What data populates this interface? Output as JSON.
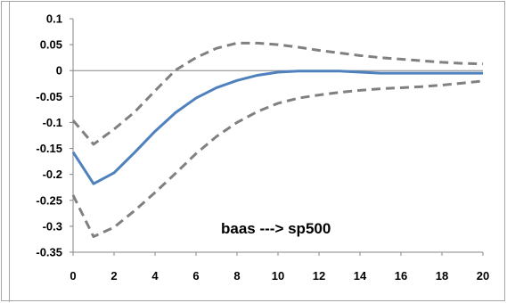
{
  "chart_data": {
    "type": "line",
    "title": "",
    "xlabel": "",
    "ylabel": "",
    "annotation": "baas ---> sp500",
    "x": [
      0,
      1,
      2,
      3,
      4,
      5,
      6,
      7,
      8,
      9,
      10,
      11,
      12,
      13,
      14,
      15,
      16,
      17,
      18,
      19,
      20
    ],
    "xlim": [
      0,
      20
    ],
    "ylim": [
      -0.35,
      0.1
    ],
    "x_ticks": [
      "0",
      "2",
      "4",
      "6",
      "8",
      "10",
      "12",
      "14",
      "16",
      "18",
      "20"
    ],
    "y_ticks": [
      "0.1",
      "0.05",
      "0",
      "-0.05",
      "-0.1",
      "-0.15",
      "-0.2",
      "-0.25",
      "-0.3",
      "-0.35"
    ],
    "series": [
      {
        "role": "response",
        "style": "solid",
        "color": "#4f81bd",
        "values": [
          -0.157,
          -0.218,
          -0.197,
          -0.158,
          -0.117,
          -0.081,
          -0.053,
          -0.033,
          -0.019,
          -0.009,
          -0.003,
          -0.001,
          -0.001,
          -0.001,
          -0.003,
          -0.005,
          -0.005,
          -0.005,
          -0.005,
          -0.005,
          -0.005
        ]
      },
      {
        "role": "upper-band",
        "style": "dashed",
        "color": "#808080",
        "values": [
          -0.096,
          -0.142,
          -0.113,
          -0.08,
          -0.039,
          0.001,
          0.025,
          0.043,
          0.053,
          0.053,
          0.05,
          0.045,
          0.039,
          0.034,
          0.029,
          0.025,
          0.022,
          0.019,
          0.016,
          0.014,
          0.013
        ]
      },
      {
        "role": "lower-band",
        "style": "dashed",
        "color": "#808080",
        "values": [
          -0.24,
          -0.32,
          -0.302,
          -0.27,
          -0.235,
          -0.198,
          -0.16,
          -0.127,
          -0.1,
          -0.079,
          -0.063,
          -0.053,
          -0.047,
          -0.042,
          -0.038,
          -0.035,
          -0.033,
          -0.031,
          -0.028,
          -0.024,
          -0.02
        ]
      }
    ],
    "grid": false,
    "legend": "none",
    "axis_color": "#868686",
    "frame_color": "#868686"
  }
}
